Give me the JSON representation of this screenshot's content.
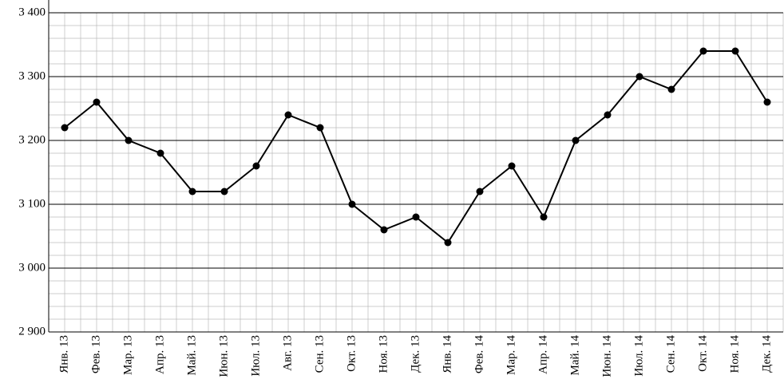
{
  "chart_data": {
    "type": "line",
    "categories": [
      "Янв. 13",
      "Фев. 13",
      "Мар. 13",
      "Апр. 13",
      "Май. 13",
      "Июн. 13",
      "Июл. 13",
      "Авг. 13",
      "Сен. 13",
      "Окт. 13",
      "Ноя. 13",
      "Дек. 13",
      "Янв. 14",
      "Фев. 14",
      "Мар. 14",
      "Апр. 14",
      "Май. 14",
      "Июн. 14",
      "Июл. 14",
      "Сен. 14",
      "Окт. 14",
      "Ноя. 14",
      "Дек. 14"
    ],
    "values": [
      3220,
      3260,
      3200,
      3180,
      3120,
      3120,
      3160,
      3240,
      3220,
      3100,
      3060,
      3080,
      3040,
      3120,
      3160,
      3080,
      3200,
      3240,
      3300,
      3280,
      3340,
      3340,
      3260
    ],
    "color": "#000000",
    "ylim": [
      2900,
      3400
    ],
    "yticks": [
      {
        "value": 2900,
        "label": "2 900"
      },
      {
        "value": 3000,
        "label": "3 000"
      },
      {
        "value": 3100,
        "label": "3 100"
      },
      {
        "value": 3200,
        "label": "3 200"
      },
      {
        "value": 3300,
        "label": "3 300"
      },
      {
        "value": 3400,
        "label": "3 400"
      }
    ],
    "grid": true
  }
}
